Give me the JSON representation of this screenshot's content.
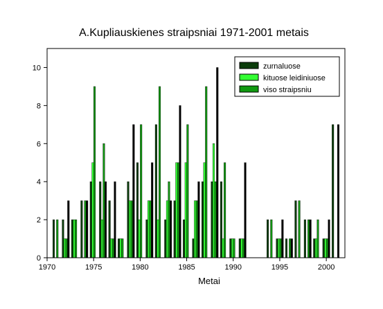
{
  "chart_data": {
    "type": "bar",
    "title": "A.Kupliauskienes straipsniai 1971-2001 metais",
    "xlabel": "Metai",
    "ylabel": "",
    "xlim": [
      1970,
      2002
    ],
    "ylim": [
      0,
      11
    ],
    "x_ticks": [
      1970,
      1975,
      1980,
      1985,
      1990,
      1995,
      2000
    ],
    "y_ticks": [
      0,
      2,
      4,
      6,
      8,
      10
    ],
    "legend_position": "top-right",
    "grid": false,
    "x": [
      1971,
      1972,
      1973,
      1974,
      1975,
      1976,
      1977,
      1978,
      1979,
      1980,
      1981,
      1982,
      1983,
      1984,
      1985,
      1986,
      1987,
      1988,
      1989,
      1990,
      1991,
      1994,
      1995,
      1996,
      1997,
      1998,
      1999,
      2000,
      2001
    ],
    "series": [
      {
        "name": "zurnaluose",
        "color": "#0b3d0b",
        "values": [
          2,
          2,
          2,
          3,
          4,
          4,
          3,
          1,
          4,
          5,
          2,
          7,
          2,
          3,
          2,
          1,
          4,
          4,
          4,
          1,
          1,
          2,
          1,
          1,
          3,
          2,
          1,
          1,
          7
        ]
      },
      {
        "name": "kituose leidiniuose",
        "color": "#33ff33",
        "values": [
          0,
          1,
          2,
          0,
          5,
          2,
          1,
          1,
          3,
          2,
          3,
          2,
          3,
          5,
          5,
          3,
          5,
          6,
          1,
          1,
          1,
          0,
          1,
          0,
          0,
          0,
          1,
          1,
          0
        ]
      },
      {
        "name": "viso straipsniu",
        "color": "#119911",
        "values": [
          2,
          1,
          2,
          3,
          9,
          6,
          1,
          1,
          3,
          7,
          3,
          9,
          4,
          5,
          7,
          3,
          9,
          4,
          5,
          1,
          1,
          2,
          1,
          1,
          3,
          2,
          2,
          1,
          0
        ]
      },
      {
        "name": "",
        "color": "#000000",
        "values": [
          0,
          3,
          0,
          3,
          0,
          4,
          4,
          0,
          7,
          0,
          5,
          0,
          3,
          8,
          0,
          4,
          0,
          10,
          0,
          0,
          5,
          0,
          2,
          1,
          0,
          2,
          0,
          2,
          7
        ]
      }
    ]
  }
}
